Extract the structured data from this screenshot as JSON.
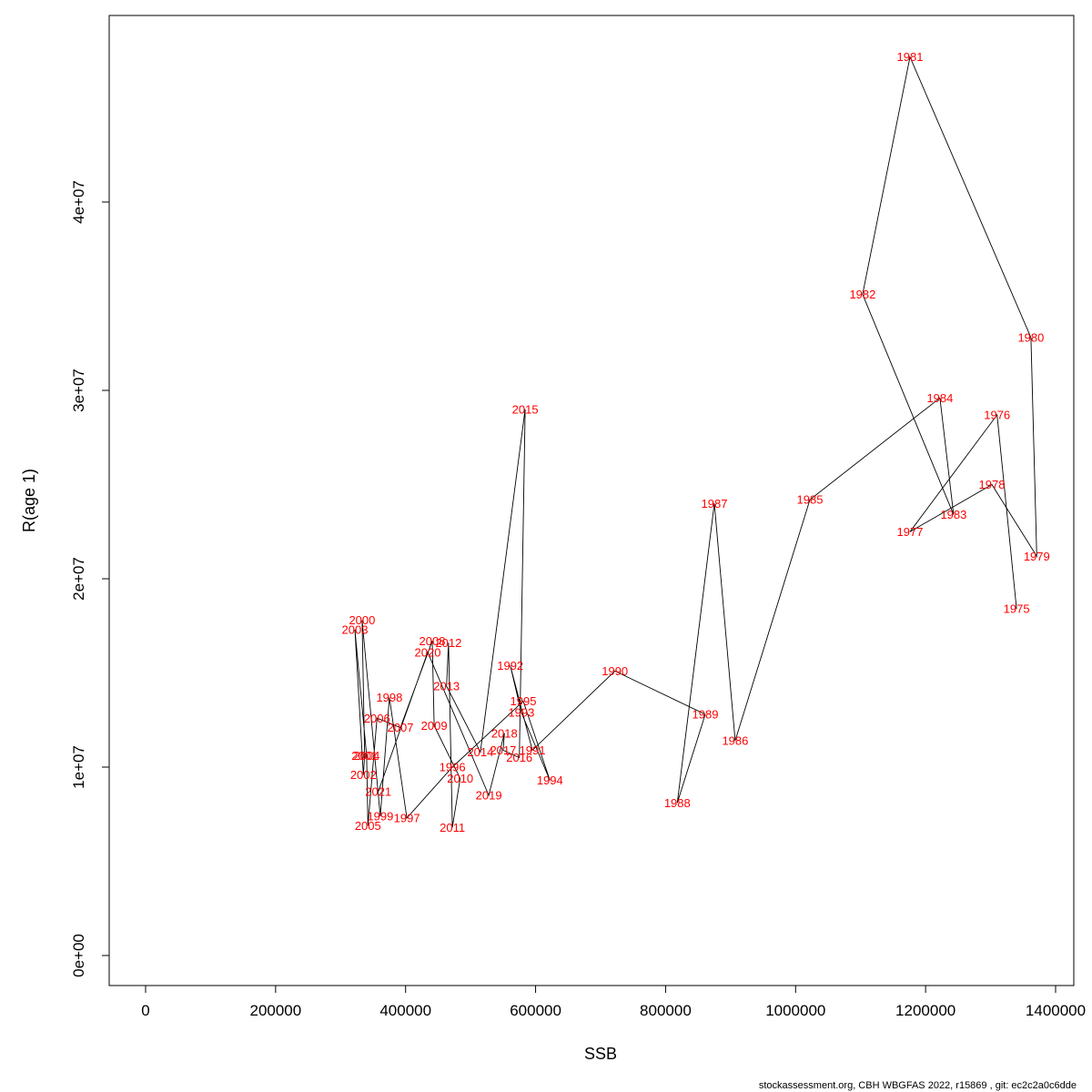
{
  "chart_data": {
    "type": "scatter",
    "title": "",
    "xlabel": "SSB",
    "ylabel": "R(age 1)",
    "xlim": [
      0,
      1400000
    ],
    "ylim": [
      0,
      48000000
    ],
    "grid": false,
    "legend": "none",
    "connect": "chronological",
    "line_color": "#000000",
    "label_color": "#ff0000",
    "x_ticks": [
      0,
      200000,
      400000,
      600000,
      800000,
      1000000,
      1200000,
      1400000
    ],
    "x_tick_labels": [
      "0",
      "200000",
      "400000",
      "600000",
      "800000",
      "1000000",
      "1200000",
      "1400000"
    ],
    "y_ticks": [
      0,
      10000000,
      20000000,
      30000000,
      40000000
    ],
    "y_tick_labels": [
      "0e+00",
      "1e+07",
      "2e+07",
      "3e+07",
      "4e+07"
    ],
    "points": [
      {
        "year": "1975",
        "ssb": 1340000,
        "r": 18400000
      },
      {
        "year": "1976",
        "ssb": 1310000,
        "r": 28700000
      },
      {
        "year": "1977",
        "ssb": 1176000,
        "r": 22500000
      },
      {
        "year": "1978",
        "ssb": 1302000,
        "r": 25000000
      },
      {
        "year": "1979",
        "ssb": 1371000,
        "r": 21200000
      },
      {
        "year": "1980",
        "ssb": 1362000,
        "r": 32800000
      },
      {
        "year": "1981",
        "ssb": 1176000,
        "r": 47700000
      },
      {
        "year": "1982",
        "ssb": 1103000,
        "r": 35100000
      },
      {
        "year": "1983",
        "ssb": 1243000,
        "r": 23400000
      },
      {
        "year": "1984",
        "ssb": 1222000,
        "r": 29600000
      },
      {
        "year": "1985",
        "ssb": 1022000,
        "r": 24200000
      },
      {
        "year": "1986",
        "ssb": 907000,
        "r": 11400000
      },
      {
        "year": "1987",
        "ssb": 875000,
        "r": 24000000
      },
      {
        "year": "1988",
        "ssb": 818000,
        "r": 8100000
      },
      {
        "year": "1989",
        "ssb": 861000,
        "r": 12800000
      },
      {
        "year": "1990",
        "ssb": 722000,
        "r": 15100000
      },
      {
        "year": "1991",
        "ssb": 595000,
        "r": 10900000
      },
      {
        "year": "1992",
        "ssb": 561000,
        "r": 15400000
      },
      {
        "year": "1993",
        "ssb": 578000,
        "r": 12900000
      },
      {
        "year": "1994",
        "ssb": 622000,
        "r": 9300000
      },
      {
        "year": "1995",
        "ssb": 581000,
        "r": 13500000
      },
      {
        "year": "1996",
        "ssb": 472000,
        "r": 10000000
      },
      {
        "year": "1997",
        "ssb": 402000,
        "r": 7300000
      },
      {
        "year": "1998",
        "ssb": 375000,
        "r": 13700000
      },
      {
        "year": "1999",
        "ssb": 361000,
        "r": 7400000
      },
      {
        "year": "2000",
        "ssb": 333000,
        "r": 17800000
      },
      {
        "year": "2001",
        "ssb": 337000,
        "r": 10600000
      },
      {
        "year": "2002",
        "ssb": 335000,
        "r": 9600000
      },
      {
        "year": "2003",
        "ssb": 322000,
        "r": 17300000
      },
      {
        "year": "2004",
        "ssb": 340000,
        "r": 10600000
      },
      {
        "year": "2005",
        "ssb": 342000,
        "r": 6900000
      },
      {
        "year": "2006",
        "ssb": 356000,
        "r": 12600000
      },
      {
        "year": "2007",
        "ssb": 392000,
        "r": 12100000
      },
      {
        "year": "2008",
        "ssb": 441000,
        "r": 16700000
      },
      {
        "year": "2009",
        "ssb": 444000,
        "r": 12200000
      },
      {
        "year": "2010",
        "ssb": 484000,
        "r": 9400000
      },
      {
        "year": "2011",
        "ssb": 472000,
        "r": 6800000
      },
      {
        "year": "2012",
        "ssb": 466000,
        "r": 16600000
      },
      {
        "year": "2013",
        "ssb": 463000,
        "r": 14300000
      },
      {
        "year": "2014",
        "ssb": 515000,
        "r": 10800000
      },
      {
        "year": "2015",
        "ssb": 584000,
        "r": 29000000
      },
      {
        "year": "2016",
        "ssb": 575000,
        "r": 10500000
      },
      {
        "year": "2017",
        "ssb": 550000,
        "r": 10900000
      },
      {
        "year": "2018",
        "ssb": 552000,
        "r": 11800000
      },
      {
        "year": "2019",
        "ssb": 528000,
        "r": 8500000
      },
      {
        "year": "2020",
        "ssb": 434000,
        "r": 16100000
      },
      {
        "year": "2021",
        "ssb": 358000,
        "r": 8700000
      }
    ]
  },
  "footer": {
    "credit": "stockassessment.org, CBH  WBGFAS  2022, r15869 , git: ec2c2a0c6dde"
  }
}
